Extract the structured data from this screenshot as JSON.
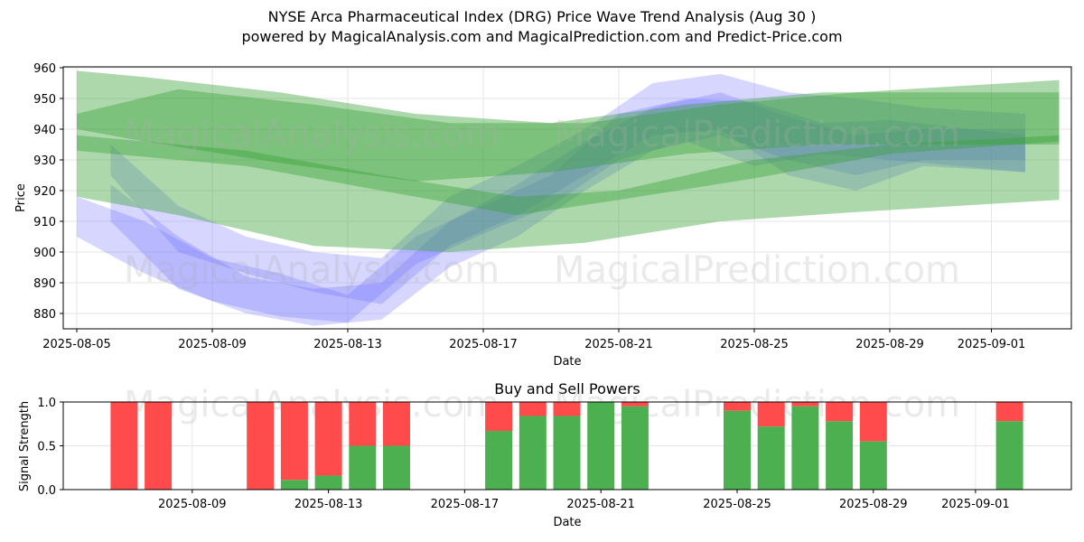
{
  "title_line1": "NYSE Arca Pharmaceutical Index (DRG) Price Wave Trend Analysis (Aug 30 )",
  "title_line2": "powered by MagicalAnalysis.com and MagicalPrediction.com and Predict-Price.com",
  "watermarks": [
    "MagicalAnalysis.com",
    "MagicalPrediction.com"
  ],
  "colors": {
    "buy": "#4caf50",
    "sell": "#ff4b4b",
    "blue_band": "#6a6aff",
    "green_band": "#3aa33a"
  },
  "chart_data": [
    {
      "type": "area",
      "xlabel": "Date",
      "ylabel": "Price",
      "ylim": [
        875,
        961
      ],
      "grid": true,
      "x_ticks": [
        "2025-08-05",
        "2025-08-09",
        "2025-08-13",
        "2025-08-17",
        "2025-08-21",
        "2025-08-25",
        "2025-08-29",
        "2025-09-01"
      ],
      "y_ticks": [
        880,
        890,
        900,
        910,
        920,
        930,
        940,
        950,
        960
      ],
      "blue_bands": [
        {
          "x": [
            "2025-08-05",
            "2025-08-07",
            "2025-08-09",
            "2025-08-11",
            "2025-08-13",
            "2025-08-15",
            "2025-08-17",
            "2025-08-19",
            "2025-08-21",
            "2025-08-23",
            "2025-08-25",
            "2025-08-27",
            "2025-08-29",
            "2025-09-02"
          ],
          "upper": [
            918,
            910,
            898,
            893,
            886,
            905,
            915,
            925,
            945,
            950,
            949,
            942,
            943,
            938
          ],
          "lower": [
            905,
            893,
            884,
            879,
            877,
            896,
            906,
            915,
            930,
            936,
            928,
            932,
            930,
            926
          ]
        },
        {
          "x": [
            "2025-08-06",
            "2025-08-08",
            "2025-08-10",
            "2025-08-12",
            "2025-08-14",
            "2025-08-16",
            "2025-08-18",
            "2025-08-20",
            "2025-08-22",
            "2025-08-24",
            "2025-08-26",
            "2025-08-28",
            "2025-08-30",
            "2025-09-02"
          ],
          "upper": [
            935,
            915,
            905,
            900,
            898,
            918,
            928,
            940,
            955,
            958,
            952,
            950,
            947,
            945
          ],
          "lower": [
            925,
            900,
            893,
            887,
            883,
            902,
            912,
            925,
            938,
            940,
            925,
            920,
            928,
            926
          ]
        },
        {
          "x": [
            "2025-08-06",
            "2025-08-08",
            "2025-08-10",
            "2025-08-12",
            "2025-08-14",
            "2025-08-16",
            "2025-08-18",
            "2025-08-20",
            "2025-08-22",
            "2025-08-24",
            "2025-08-26",
            "2025-08-28",
            "2025-08-30",
            "2025-09-02"
          ],
          "upper": [
            922,
            905,
            892,
            888,
            890,
            910,
            922,
            936,
            947,
            952,
            944,
            938,
            940,
            940
          ],
          "lower": [
            910,
            888,
            880,
            876,
            878,
            895,
            905,
            920,
            933,
            938,
            930,
            925,
            930,
            930
          ]
        }
      ],
      "green_bands": [
        {
          "x": [
            "2025-08-05",
            "2025-08-07",
            "2025-08-11",
            "2025-08-15",
            "2025-08-19",
            "2025-08-23",
            "2025-08-27",
            "2025-09-03"
          ],
          "upper": [
            959,
            957,
            952,
            945,
            942,
            948,
            952,
            952
          ],
          "lower": [
            940,
            936,
            929,
            923,
            926,
            932,
            935,
            935
          ]
        },
        {
          "x": [
            "2025-08-05",
            "2025-08-08",
            "2025-08-12",
            "2025-08-16",
            "2025-08-20",
            "2025-08-24",
            "2025-08-28",
            "2025-09-03"
          ],
          "upper": [
            945,
            953,
            948,
            942,
            942,
            948,
            952,
            956
          ],
          "lower": [
            918,
            912,
            902,
            900,
            903,
            910,
            913,
            917
          ]
        },
        {
          "x": [
            "2025-08-05",
            "2025-08-10",
            "2025-08-14",
            "2025-08-18",
            "2025-08-21",
            "2025-08-25",
            "2025-08-29",
            "2025-09-03"
          ],
          "upper": [
            938,
            933,
            925,
            918,
            920,
            930,
            935,
            938
          ],
          "lower": [
            933,
            928,
            920,
            912,
            917,
            924,
            932,
            936
          ]
        }
      ]
    },
    {
      "type": "bar",
      "title": "Buy and Sell Powers",
      "xlabel": "Date",
      "ylabel": "Signal Strength",
      "ylim": [
        0,
        1.0
      ],
      "x_ticks": [
        "2025-08-09",
        "2025-08-13",
        "2025-08-17",
        "2025-08-21",
        "2025-08-25",
        "2025-08-29",
        "2025-09-01"
      ],
      "y_ticks": [
        "0.0",
        "0.5",
        "1.0"
      ],
      "bars": [
        {
          "date": "2025-08-07",
          "buy": 0.0
        },
        {
          "date": "2025-08-08",
          "buy": 0.0
        },
        {
          "date": "2025-08-11",
          "buy": 0.0
        },
        {
          "date": "2025-08-12",
          "buy": 0.11
        },
        {
          "date": "2025-08-13",
          "buy": 0.16
        },
        {
          "date": "2025-08-14",
          "buy": 0.5
        },
        {
          "date": "2025-08-15",
          "buy": 0.5
        },
        {
          "date": "2025-08-18",
          "buy": 0.67
        },
        {
          "date": "2025-08-19",
          "buy": 0.84
        },
        {
          "date": "2025-08-20",
          "buy": 0.84
        },
        {
          "date": "2025-08-21",
          "buy": 1.0
        },
        {
          "date": "2025-08-22",
          "buy": 0.95
        },
        {
          "date": "2025-08-25",
          "buy": 0.9
        },
        {
          "date": "2025-08-26",
          "buy": 0.72
        },
        {
          "date": "2025-08-27",
          "buy": 0.95
        },
        {
          "date": "2025-08-28",
          "buy": 0.78
        },
        {
          "date": "2025-08-29",
          "buy": 0.55
        },
        {
          "date": "2025-09-02",
          "buy": 0.78
        }
      ]
    }
  ]
}
